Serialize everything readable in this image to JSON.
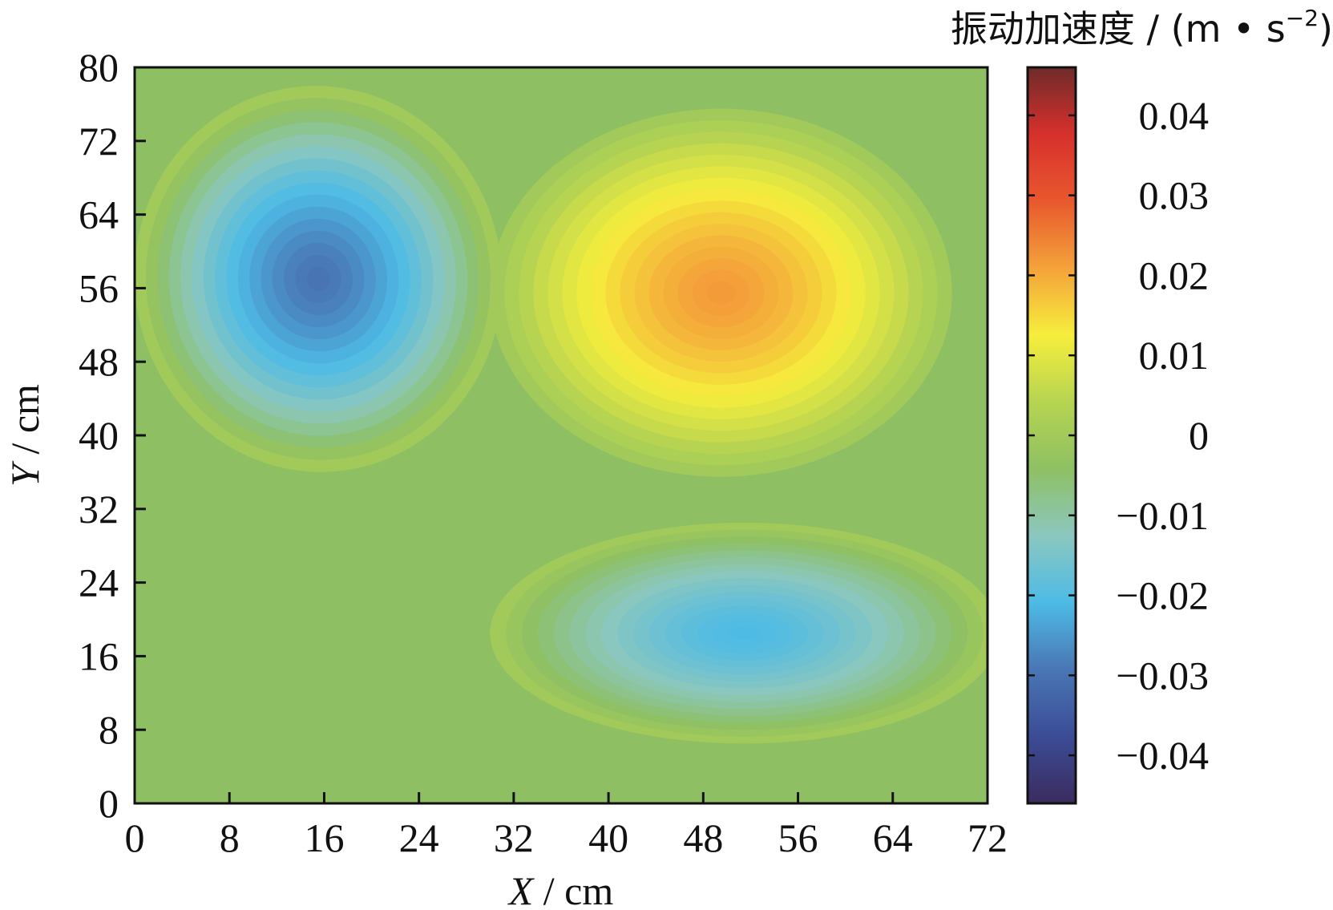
{
  "chart_data": {
    "type": "heatmap",
    "title": "",
    "xlabel_var": "X",
    "xlabel_unit": " / cm",
    "ylabel_var": "Y",
    "ylabel_unit": " / cm",
    "xlim": [
      0,
      72
    ],
    "ylim": [
      0,
      80
    ],
    "x_ticks": [
      0,
      8,
      16,
      24,
      32,
      40,
      48,
      56,
      64,
      72
    ],
    "y_ticks": [
      0,
      8,
      16,
      24,
      32,
      40,
      48,
      56,
      64,
      72,
      80
    ],
    "colorbar": {
      "title": "振动加速度 / (m • s",
      "title_exponent": "−2",
      "title_close": ")",
      "range": [
        -0.046,
        0.046
      ],
      "ticks": [
        0.04,
        0.03,
        0.02,
        0.01,
        0,
        -0.01,
        -0.02,
        -0.03,
        -0.04
      ],
      "tick_labels": [
        "0.04",
        "0.03",
        "0.02",
        "0.01",
        "0",
        "−0.01",
        "−0.02",
        "−0.03",
        "−0.04"
      ],
      "colors": [
        "#3b2b5e",
        "#3b4c96",
        "#4a76b5",
        "#4dbbe6",
        "#8bc7bf",
        "#8ec063",
        "#b6d451",
        "#f6ee3c",
        "#f4a23a",
        "#e8582e",
        "#d7302c",
        "#6e2b2a"
      ]
    },
    "field_extrema": [
      {
        "x": 15.5,
        "y": 57,
        "value": -0.03,
        "label": "minimum"
      },
      {
        "x": 49.5,
        "y": 55.5,
        "value": 0.022,
        "label": "maximum"
      },
      {
        "x": 51.5,
        "y": 18.5,
        "value": -0.021,
        "label": "minimum"
      }
    ],
    "grid": false
  }
}
